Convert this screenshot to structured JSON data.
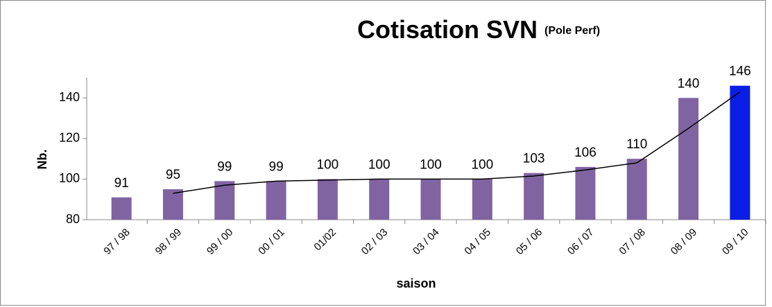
{
  "chart_data": {
    "type": "bar",
    "title": "Cotisation SVN",
    "subtitle": "(Pole Perf)",
    "y_label": "Nb.",
    "x_label": "saison",
    "categories": [
      "97 / 98",
      "98 / 99",
      "99 / 00",
      "00 / 01",
      "01/02",
      "02 / 03",
      "03 / 04",
      "04 / 05",
      "05 / 06",
      "06 / 07",
      "07 / 08",
      "08 / 09",
      "09 / 10"
    ],
    "values": [
      91,
      95,
      99,
      99,
      100,
      100,
      100,
      100,
      103,
      106,
      110,
      140,
      146
    ],
    "colors": [
      "#8064a2",
      "#8064a2",
      "#8064a2",
      "#8064a2",
      "#8064a2",
      "#8064a2",
      "#8064a2",
      "#8064a2",
      "#8064a2",
      "#8064a2",
      "#8064a2",
      "#8064a2",
      "#0a1ee6"
    ],
    "trendline": {
      "color": "#000000",
      "values": [
        null,
        93,
        97,
        99,
        99.5,
        100,
        100,
        100,
        101.5,
        104.5,
        108,
        125,
        143
      ]
    },
    "ylim": [
      80,
      150
    ],
    "yticks": [
      80,
      100,
      120,
      140
    ],
    "grid": false
  }
}
